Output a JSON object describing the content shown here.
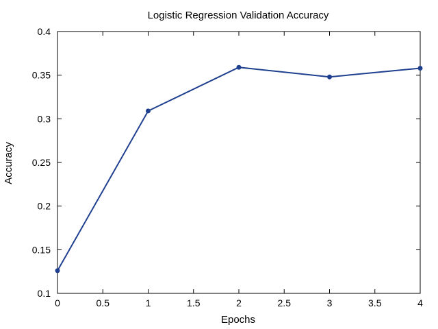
{
  "chart_data": {
    "type": "line",
    "title": "Logistic Regression Validation Accuracy",
    "xlabel": "Epochs",
    "ylabel": "Accuracy",
    "xlim": [
      0,
      4
    ],
    "ylim": [
      0.1,
      0.4
    ],
    "xticks": [
      0,
      0.5,
      1,
      1.5,
      2,
      2.5,
      3,
      3.5,
      4
    ],
    "xtick_labels": [
      "0",
      "0.5",
      "1",
      "1.5",
      "2",
      "2.5",
      "3",
      "3.5",
      "4"
    ],
    "yticks": [
      0.1,
      0.15,
      0.2,
      0.25,
      0.3,
      0.35,
      0.4
    ],
    "ytick_labels": [
      "0.1",
      "0.15",
      "0.2",
      "0.25",
      "0.3",
      "0.35",
      "0.4"
    ],
    "grid": false,
    "series": [
      {
        "color": "#1f3f8f",
        "x": [
          0,
          1,
          2,
          3,
          4
        ],
        "y": [
          0.126,
          0.309,
          0.359,
          0.348,
          0.358
        ]
      }
    ]
  }
}
